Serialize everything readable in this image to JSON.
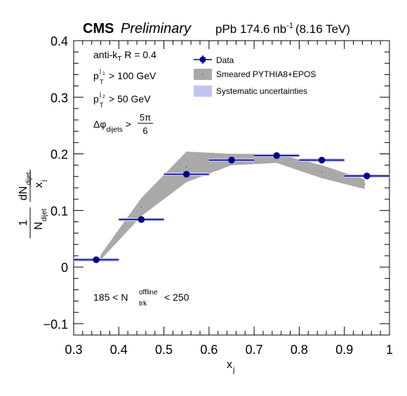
{
  "header": {
    "cms": "CMS",
    "preliminary": "Preliminary",
    "lumi_prefix": "pPb 174.6 nb",
    "lumi_exp": "-1",
    "lumi_suffix": "(8.16 TeV)"
  },
  "annotations": {
    "algo_main": "anti-k",
    "algo_sub": "T",
    "algo_rest": "R = 0.4",
    "pt1_main": "p",
    "pt1_sup": "j",
    "pt1_supsub": "1",
    "pt1_sub": "T",
    "pt1_rest": "> 100 GeV",
    "pt2_main": "p",
    "pt2_sup": "j",
    "pt2_supsub": "2",
    "pt2_sub": "T",
    "pt2_rest": "> 50 GeV",
    "dphi_main": "Δφ",
    "dphi_sub": "dijets",
    "dphi_gt": ">",
    "dphi_num": "5π",
    "dphi_den": "6",
    "mult_left": "185 < N",
    "mult_sup": "offline",
    "mult_sub": "trk",
    "mult_right": "< 250"
  },
  "legend": {
    "data": "Data",
    "mc": "Smeared PYTHIA8+EPOS",
    "syst": "Systematic uncertainties"
  },
  "colors": {
    "data": "#00008b",
    "mc_band": "#a9a9a9",
    "syst": "#c3c3f0"
  },
  "chart_data": {
    "type": "scatter",
    "xlabel": "x_j",
    "ylabel": "1/N_dijet dN_dijet/x_j",
    "xlim": [
      0.3,
      1.0
    ],
    "ylim": [
      -0.12,
      0.4
    ],
    "x_ticks": [
      "0.3",
      "0.4",
      "0.5",
      "0.6",
      "0.7",
      "0.8",
      "0.9",
      "1"
    ],
    "y_ticks": [
      "−0.1",
      "0",
      "0.1",
      "0.2",
      "0.3",
      "0.4"
    ],
    "series": [
      {
        "name": "Data",
        "x": [
          0.35,
          0.45,
          0.55,
          0.65,
          0.75,
          0.85,
          0.95
        ],
        "x_low": [
          0.3,
          0.4,
          0.5,
          0.6,
          0.7,
          0.8,
          0.9
        ],
        "x_high": [
          0.4,
          0.5,
          0.6,
          0.7,
          0.8,
          0.9,
          1.0
        ],
        "y": [
          0.013,
          0.084,
          0.164,
          0.189,
          0.197,
          0.189,
          0.161
        ]
      },
      {
        "name": "Smeared PYTHIA8+EPOS",
        "x": [
          0.36,
          0.45,
          0.55,
          0.65,
          0.75,
          0.85,
          0.945
        ],
        "y_low": [
          0.013,
          0.09,
          0.15,
          0.18,
          0.184,
          0.157,
          0.138
        ],
        "y_high": [
          0.022,
          0.122,
          0.204,
          0.2,
          0.2,
          0.18,
          0.155
        ]
      }
    ]
  }
}
